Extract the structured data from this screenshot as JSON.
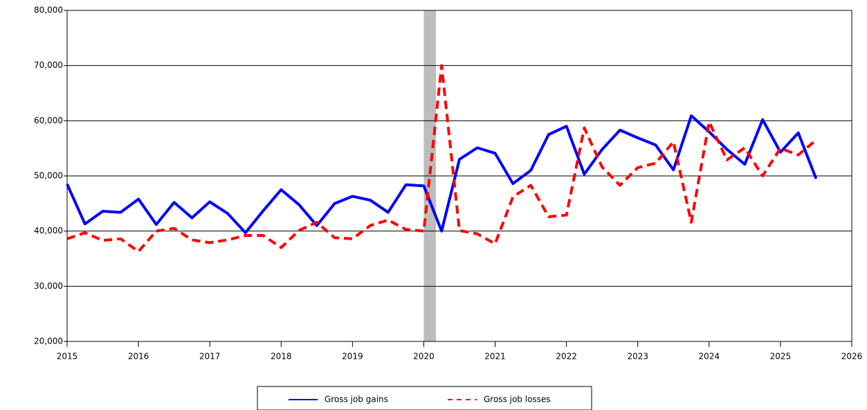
{
  "chart_data": {
    "type": "line",
    "x": [
      2015,
      2015.25,
      2015.5,
      2015.75,
      2016,
      2016.25,
      2016.5,
      2016.75,
      2017,
      2017.25,
      2017.5,
      2017.75,
      2018,
      2018.25,
      2018.5,
      2018.75,
      2019,
      2019.25,
      2019.5,
      2019.75,
      2020,
      2020.25,
      2020.5,
      2020.75,
      2021,
      2021.25,
      2021.5,
      2021.75,
      2022,
      2022.25,
      2022.5,
      2022.75,
      2023,
      2023.25,
      2023.5,
      2023.75,
      2024,
      2024.25,
      2024.5,
      2024.75,
      2025,
      2025.25,
      2025.5
    ],
    "series": [
      {
        "name": "Gross job gains",
        "color": "#0000ff",
        "dashed": false,
        "values": [
          48500,
          41300,
          43600,
          43400,
          45800,
          41200,
          45200,
          42400,
          45300,
          43200,
          39700,
          43700,
          47500,
          44800,
          41000,
          45000,
          46300,
          45600,
          43400,
          48400,
          48200,
          40000,
          53000,
          55100,
          54100,
          48600,
          51000,
          57500,
          59000,
          50300,
          54800,
          58300,
          56900,
          55600,
          51100,
          60900,
          58000,
          54800,
          52100,
          60200,
          54300,
          57800,
          49500
        ]
      },
      {
        "name": "Gross job losses",
        "color": "#ff0000",
        "dashed": true,
        "values": [
          38600,
          39700,
          38300,
          38600,
          36300,
          40000,
          40500,
          38400,
          37900,
          38400,
          39200,
          39200,
          37000,
          40100,
          41600,
          38800,
          38600,
          41000,
          42000,
          40300,
          40000,
          70000,
          40100,
          39500,
          37700,
          46200,
          48300,
          42600,
          42900,
          58700,
          51600,
          48300,
          51500,
          52300,
          56200,
          41600,
          59800,
          52900,
          55100,
          50000,
          55000,
          53800,
          56500
        ]
      }
    ],
    "xlim": [
      2015,
      2026
    ],
    "xticks": [
      2015,
      2016,
      2017,
      2018,
      2019,
      2020,
      2021,
      2022,
      2023,
      2024,
      2025,
      2026
    ],
    "ylim": [
      20000,
      80000
    ],
    "yticks": [
      {
        "value": 20000,
        "label": "20,000"
      },
      {
        "value": 30000,
        "label": "30,000"
      },
      {
        "value": 40000,
        "label": "40,000"
      },
      {
        "value": 50000,
        "label": "50,000"
      },
      {
        "value": 60000,
        "label": "60,000"
      },
      {
        "value": 70000,
        "label": "70,000"
      },
      {
        "value": 80000,
        "label": "80,000"
      }
    ],
    "shaded_x": [
      2020,
      2020.17
    ],
    "grid": true,
    "legend": "bottom"
  }
}
